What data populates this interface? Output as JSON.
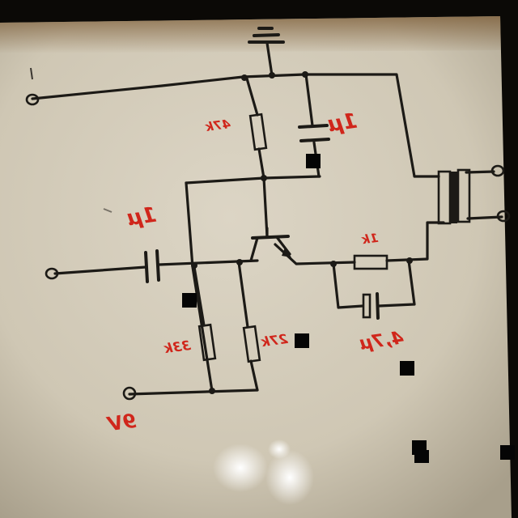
{
  "colors": {
    "background": "#0b0906",
    "board": "#d9d2c2",
    "ink": "#1c1a16",
    "label": "#d0261b"
  },
  "labels": {
    "r_top": "47k",
    "c_top": "1µ",
    "c_input": "1µ",
    "r_emitter": "1k",
    "r_base_left": "33k",
    "r_base_right": "27k",
    "c_emitter": "4,7µ",
    "supply": "9V"
  }
}
